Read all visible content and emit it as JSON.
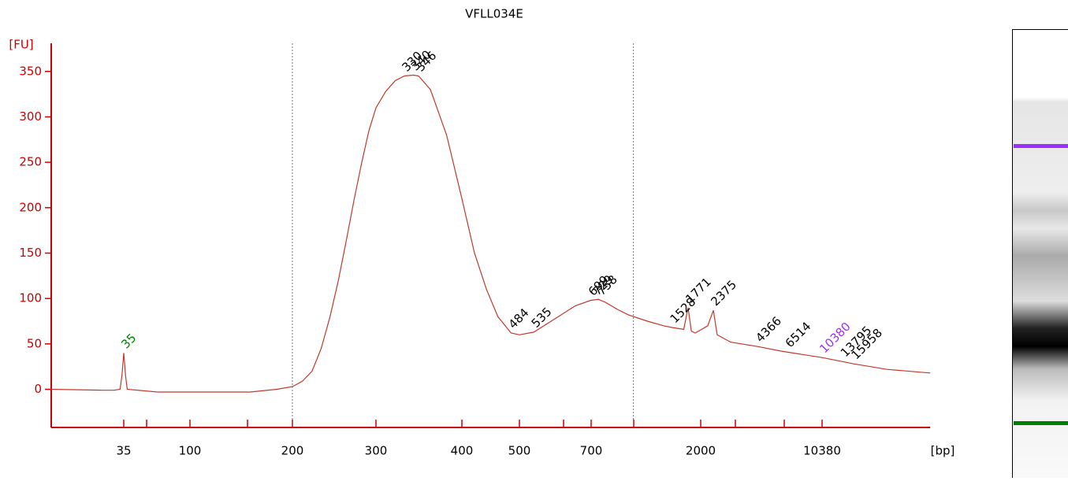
{
  "chart_data": {
    "type": "line",
    "title": "VFLL034E",
    "y_label": "[FU]",
    "x_label": "[bp]",
    "color": "#c0392b",
    "axis_color": "#cc0000",
    "ylim": [
      -42,
      381
    ],
    "yticks": [
      0,
      50,
      100,
      150,
      200,
      250,
      300,
      350
    ],
    "xlim": [
      11,
      45000
    ],
    "xticks": [
      35,
      100,
      200,
      300,
      400,
      500,
      700,
      2000,
      10380
    ],
    "region": [
      200,
      1050
    ],
    "x": [
      11,
      25,
      30,
      33,
      34,
      35,
      36,
      37,
      60,
      150,
      180,
      200,
      210,
      220,
      230,
      240,
      250,
      260,
      270,
      280,
      290,
      300,
      310,
      320,
      330,
      340,
      346,
      360,
      380,
      400,
      420,
      440,
      460,
      484,
      500,
      535,
      600,
      650,
      699,
      750,
      800,
      900,
      1000,
      1200,
      1400,
      1528,
      1700,
      1771,
      1830,
      1900,
      2200,
      2375,
      2500,
      3000,
      4366,
      6000,
      10380,
      15958,
      25000,
      45000
    ],
    "values": [
      0,
      -1,
      -1,
      0,
      15,
      40,
      15,
      0,
      -3,
      -3,
      0,
      3,
      9,
      20,
      45,
      80,
      120,
      165,
      210,
      250,
      285,
      310,
      328,
      340,
      345,
      346,
      345,
      330,
      280,
      210,
      150,
      110,
      80,
      62,
      60,
      63,
      80,
      92,
      98,
      99,
      96,
      88,
      82,
      75,
      70,
      68,
      66,
      90,
      64,
      62,
      70,
      87,
      60,
      52,
      47,
      42,
      35,
      28,
      22,
      18
    ],
    "peaks": [
      35,
      330,
      340,
      346,
      484,
      535,
      699,
      729,
      758,
      1528,
      1771,
      2375,
      4366,
      6514,
      10380,
      13795,
      15958
    ],
    "peak_colors": [
      "#008000",
      "#000",
      "#000",
      "#000",
      "#000",
      "#000",
      "#000",
      "#000",
      "#000",
      "#000",
      "#000",
      "#000",
      "#000",
      "#000",
      "#9b30ff",
      "#000",
      "#000"
    ]
  }
}
